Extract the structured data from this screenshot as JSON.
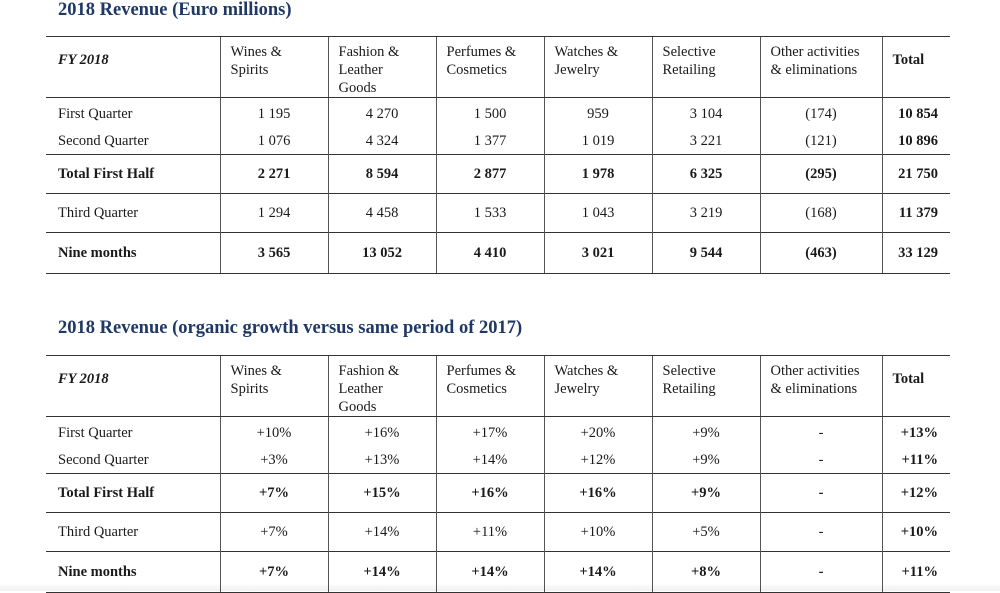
{
  "table1": {
    "title": "2018 Revenue (Euro millions)",
    "header": {
      "fy": "FY 2018",
      "cols": [
        [
          "Wines &",
          "Spirits"
        ],
        [
          "Fashion &",
          "Leather",
          "Goods"
        ],
        [
          "Perfumes &",
          "Cosmetics"
        ],
        [
          "Watches &",
          "Jewelry"
        ],
        [
          "Selective",
          "Retailing"
        ],
        [
          "Other activities",
          "& eliminations"
        ]
      ],
      "total": "Total"
    },
    "rows": [
      {
        "label": "First Quarter",
        "values": [
          "1 195",
          "4 270",
          "1 500",
          "959",
          "3 104",
          "(174)"
        ],
        "total": "10 854"
      },
      {
        "label": "Second Quarter",
        "values": [
          "1 076",
          "4 324",
          "1 377",
          "1 019",
          "3 221",
          "(121)"
        ],
        "total": "10 896"
      },
      {
        "label": "Total First Half",
        "values": [
          "2 271",
          "8 594",
          "2 877",
          "1 978",
          "6 325",
          "(295)"
        ],
        "total": "21 750"
      },
      {
        "label": "Third Quarter",
        "values": [
          "1 294",
          "4 458",
          "1 533",
          "1 043",
          "3 219",
          "(168)"
        ],
        "total": "11 379"
      },
      {
        "label": "Nine months",
        "values": [
          "3 565",
          "13 052",
          "4 410",
          "3 021",
          "9 544",
          "(463)"
        ],
        "total": "33 129"
      }
    ]
  },
  "table2": {
    "title": "2018 Revenue (organic growth versus same period of 2017)",
    "header": {
      "fy": "FY 2018",
      "cols": [
        [
          "Wines &",
          "Spirits"
        ],
        [
          "Fashion &",
          "Leather",
          "Goods"
        ],
        [
          "Perfumes &",
          "Cosmetics"
        ],
        [
          "Watches &",
          "Jewelry"
        ],
        [
          "Selective",
          "Retailing"
        ],
        [
          "Other activities",
          "& eliminations"
        ]
      ],
      "total": "Total"
    },
    "rows": [
      {
        "label": "First Quarter",
        "values": [
          "+10%",
          "+16%",
          "+17%",
          "+20%",
          "+9%",
          "-"
        ],
        "total": "+13%"
      },
      {
        "label": "Second Quarter",
        "values": [
          "+3%",
          "+13%",
          "+14%",
          "+12%",
          "+9%",
          "-"
        ],
        "total": "+11%"
      },
      {
        "label": "Total First Half",
        "values": [
          "+7%",
          "+15%",
          "+16%",
          "+16%",
          "+9%",
          "-"
        ],
        "total": "+12%"
      },
      {
        "label": "Third Quarter",
        "values": [
          "+7%",
          "+14%",
          "+11%",
          "+10%",
          "+5%",
          "-"
        ],
        "total": "+10%"
      },
      {
        "label": "Nine months",
        "values": [
          "+7%",
          "+14%",
          "+14%",
          "+14%",
          "+8%",
          "-"
        ],
        "total": "+11%"
      }
    ]
  }
}
